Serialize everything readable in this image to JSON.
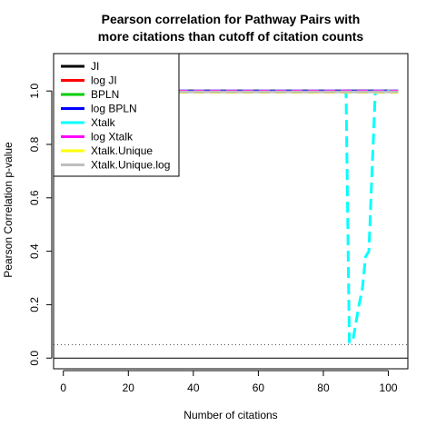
{
  "chart_data": {
    "type": "line",
    "title_line1": "Pearson correlation for Pathway Pairs with",
    "title_line2": "more citations than cutoff of citation counts",
    "xlabel": "Number of citations",
    "ylabel": "Pearson Correlation p-value",
    "xlim": [
      -3,
      106
    ],
    "ylim": [
      -0.04,
      1.14
    ],
    "xticks": [
      0,
      20,
      40,
      60,
      80,
      100
    ],
    "yticks": [
      0.0,
      0.2,
      0.4,
      0.6,
      0.8,
      1.0
    ],
    "ytick_labels": [
      "0.0",
      "0.2",
      "0.4",
      "0.6",
      "0.8",
      "1.0"
    ],
    "reference_lines": [
      {
        "y": 0.05,
        "style": "dotted",
        "color": "#555555"
      },
      {
        "y": 0.0,
        "style": "solid",
        "color": "#000000"
      }
    ],
    "legend_position": "top-left",
    "series": [
      {
        "name": "JI",
        "color": "#000000",
        "dash": "solid",
        "x": [
          35,
          103
        ],
        "y": [
          1.0,
          1.0
        ]
      },
      {
        "name": "log JI",
        "color": "#ff0000",
        "dash": "solid",
        "x": [
          35,
          103
        ],
        "y": [
          1.0,
          1.0
        ]
      },
      {
        "name": "BPLN",
        "color": "#00cd00",
        "dash": "solid",
        "x": [
          35,
          103
        ],
        "y": [
          1.0,
          1.0
        ]
      },
      {
        "name": "log BPLN",
        "color": "#0000ff",
        "dash": "solid",
        "x": [
          35,
          103
        ],
        "y": [
          1.0,
          1.0
        ]
      },
      {
        "name": "Xtalk",
        "color": "#00ffff",
        "dash": "dashed",
        "x": [
          35,
          86,
          87,
          88,
          89,
          91,
          92,
          93,
          94,
          95,
          96,
          97,
          103
        ],
        "y": [
          1.0,
          1.0,
          0.99,
          0.06,
          0.06,
          0.2,
          0.26,
          0.38,
          0.4,
          0.7,
          1.0,
          1.0,
          1.0
        ]
      },
      {
        "name": "log Xtalk",
        "color": "#ff00ff",
        "dash": "dashed",
        "x": [
          35,
          103
        ],
        "y": [
          1.0,
          1.0
        ]
      },
      {
        "name": "Xtalk.Unique",
        "color": "#ffff00",
        "dash": "dashed",
        "x": [
          35,
          103
        ],
        "y": [
          0.995,
          0.995
        ]
      },
      {
        "name": "Xtalk.Unique.log",
        "color": "#bebebe",
        "dash": "solid",
        "x": [
          35,
          103
        ],
        "y": [
          0.997,
          0.997
        ]
      }
    ]
  }
}
